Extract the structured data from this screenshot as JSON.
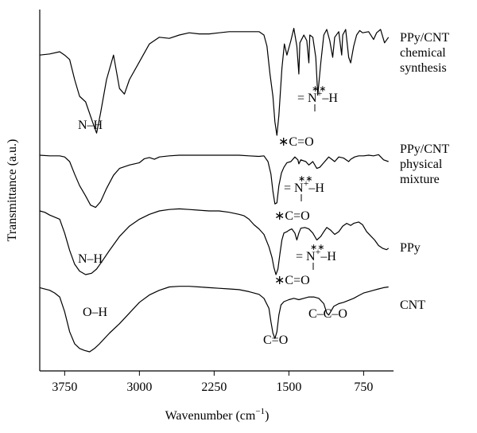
{
  "chart_data": {
    "type": "line",
    "xlabel": "Wavenumber (cm",
    "xlabel_exp": "−1",
    "xlabel_close": ")",
    "ylabel": "Transmittance (a.u.)",
    "xlim": [
      4000,
      450
    ],
    "x_reversed": true,
    "x_ticks": [
      3750,
      3000,
      2250,
      1500,
      750
    ],
    "x_tick_labels": [
      "3750",
      "3000",
      "2250",
      "1500",
      "750"
    ],
    "grid": false,
    "offset_stacked": true,
    "series": [
      {
        "name_lines": [
          "PPy/CNT",
          "chemical",
          "synthesis"
        ],
        "points": [
          [
            4000,
            0.72
          ],
          [
            3900,
            0.73
          ],
          [
            3800,
            0.75
          ],
          [
            3750,
            0.72
          ],
          [
            3700,
            0.68
          ],
          [
            3650,
            0.5
          ],
          [
            3600,
            0.35
          ],
          [
            3540,
            0.3
          ],
          [
            3470,
            0.12
          ],
          [
            3430,
            0.02
          ],
          [
            3390,
            0.2
          ],
          [
            3330,
            0.5
          ],
          [
            3260,
            0.72
          ],
          [
            3200,
            0.42
          ],
          [
            3150,
            0.37
          ],
          [
            3100,
            0.5
          ],
          [
            3000,
            0.66
          ],
          [
            2900,
            0.82
          ],
          [
            2800,
            0.88
          ],
          [
            2700,
            0.87
          ],
          [
            2600,
            0.9
          ],
          [
            2500,
            0.92
          ],
          [
            2400,
            0.91
          ],
          [
            2300,
            0.91
          ],
          [
            2200,
            0.92
          ],
          [
            2100,
            0.93
          ],
          [
            2000,
            0.93
          ],
          [
            1900,
            0.93
          ],
          [
            1800,
            0.93
          ],
          [
            1750,
            0.9
          ],
          [
            1720,
            0.8
          ],
          [
            1690,
            0.55
          ],
          [
            1660,
            0.35
          ],
          [
            1640,
            0.12
          ],
          [
            1620,
            0.0
          ],
          [
            1600,
            0.18
          ],
          [
            1570,
            0.6
          ],
          [
            1545,
            0.82
          ],
          [
            1520,
            0.72
          ],
          [
            1480,
            0.85
          ],
          [
            1450,
            0.96
          ],
          [
            1420,
            0.8
          ],
          [
            1400,
            0.55
          ],
          [
            1390,
            0.83
          ],
          [
            1350,
            0.9
          ],
          [
            1320,
            0.85
          ],
          [
            1300,
            0.65
          ],
          [
            1290,
            0.9
          ],
          [
            1260,
            0.88
          ],
          [
            1230,
            0.7
          ],
          [
            1210,
            0.36
          ],
          [
            1180,
            0.65
          ],
          [
            1150,
            0.9
          ],
          [
            1120,
            0.95
          ],
          [
            1090,
            0.85
          ],
          [
            1060,
            0.7
          ],
          [
            1040,
            0.88
          ],
          [
            1000,
            0.93
          ],
          [
            970,
            0.72
          ],
          [
            960,
            0.9
          ],
          [
            930,
            0.95
          ],
          [
            900,
            0.7
          ],
          [
            880,
            0.65
          ],
          [
            850,
            0.8
          ],
          [
            820,
            0.9
          ],
          [
            790,
            0.94
          ],
          [
            760,
            0.92
          ],
          [
            700,
            0.93
          ],
          [
            650,
            0.86
          ],
          [
            620,
            0.92
          ],
          [
            580,
            0.95
          ],
          [
            540,
            0.83
          ],
          [
            500,
            0.88
          ]
        ]
      },
      {
        "name_lines": [
          "PPy/CNT",
          "physical",
          "mixture"
        ],
        "points": [
          [
            4000,
            0.93
          ],
          [
            3900,
            0.92
          ],
          [
            3800,
            0.92
          ],
          [
            3750,
            0.9
          ],
          [
            3700,
            0.82
          ],
          [
            3650,
            0.6
          ],
          [
            3600,
            0.4
          ],
          [
            3540,
            0.22
          ],
          [
            3490,
            0.06
          ],
          [
            3440,
            0.02
          ],
          [
            3390,
            0.12
          ],
          [
            3330,
            0.35
          ],
          [
            3260,
            0.58
          ],
          [
            3200,
            0.7
          ],
          [
            3100,
            0.76
          ],
          [
            3000,
            0.8
          ],
          [
            2950,
            0.87
          ],
          [
            2900,
            0.89
          ],
          [
            2850,
            0.86
          ],
          [
            2800,
            0.9
          ],
          [
            2700,
            0.92
          ],
          [
            2600,
            0.93
          ],
          [
            2400,
            0.93
          ],
          [
            2200,
            0.93
          ],
          [
            2000,
            0.93
          ],
          [
            1900,
            0.92
          ],
          [
            1800,
            0.91
          ],
          [
            1750,
            0.92
          ],
          [
            1710,
            0.82
          ],
          [
            1680,
            0.6
          ],
          [
            1660,
            0.3
          ],
          [
            1640,
            0.08
          ],
          [
            1620,
            0.1
          ],
          [
            1600,
            0.4
          ],
          [
            1575,
            0.62
          ],
          [
            1550,
            0.72
          ],
          [
            1520,
            0.8
          ],
          [
            1480,
            0.82
          ],
          [
            1440,
            0.9
          ],
          [
            1410,
            0.85
          ],
          [
            1400,
            0.78
          ],
          [
            1380,
            0.85
          ],
          [
            1330,
            0.82
          ],
          [
            1300,
            0.76
          ],
          [
            1260,
            0.82
          ],
          [
            1220,
            0.7
          ],
          [
            1190,
            0.72
          ],
          [
            1150,
            0.8
          ],
          [
            1100,
            0.9
          ],
          [
            1070,
            0.86
          ],
          [
            1040,
            0.82
          ],
          [
            1000,
            0.9
          ],
          [
            950,
            0.88
          ],
          [
            900,
            0.82
          ],
          [
            880,
            0.86
          ],
          [
            840,
            0.9
          ],
          [
            800,
            0.92
          ],
          [
            750,
            0.92
          ],
          [
            700,
            0.93
          ],
          [
            650,
            0.92
          ],
          [
            600,
            0.94
          ],
          [
            550,
            0.85
          ],
          [
            500,
            0.82
          ]
        ]
      },
      {
        "name_lines": [
          "PPy"
        ],
        "points": [
          [
            4000,
            0.92
          ],
          [
            3950,
            0.9
          ],
          [
            3900,
            0.86
          ],
          [
            3800,
            0.8
          ],
          [
            3750,
            0.6
          ],
          [
            3700,
            0.35
          ],
          [
            3650,
            0.15
          ],
          [
            3600,
            0.05
          ],
          [
            3540,
            0.0
          ],
          [
            3480,
            0.02
          ],
          [
            3430,
            0.08
          ],
          [
            3380,
            0.18
          ],
          [
            3300,
            0.35
          ],
          [
            3200,
            0.55
          ],
          [
            3100,
            0.7
          ],
          [
            3000,
            0.8
          ],
          [
            2900,
            0.87
          ],
          [
            2800,
            0.92
          ],
          [
            2700,
            0.94
          ],
          [
            2600,
            0.95
          ],
          [
            2500,
            0.94
          ],
          [
            2400,
            0.93
          ],
          [
            2300,
            0.92
          ],
          [
            2200,
            0.92
          ],
          [
            2100,
            0.9
          ],
          [
            2000,
            0.87
          ],
          [
            1950,
            0.85
          ],
          [
            1900,
            0.8
          ],
          [
            1850,
            0.72
          ],
          [
            1800,
            0.66
          ],
          [
            1750,
            0.58
          ],
          [
            1700,
            0.4
          ],
          [
            1670,
            0.25
          ],
          [
            1650,
            0.1
          ],
          [
            1630,
            0.0
          ],
          [
            1610,
            0.08
          ],
          [
            1590,
            0.3
          ],
          [
            1570,
            0.5
          ],
          [
            1550,
            0.6
          ],
          [
            1520,
            0.62
          ],
          [
            1500,
            0.64
          ],
          [
            1470,
            0.66
          ],
          [
            1440,
            0.6
          ],
          [
            1420,
            0.5
          ],
          [
            1400,
            0.6
          ],
          [
            1380,
            0.67
          ],
          [
            1340,
            0.68
          ],
          [
            1300,
            0.66
          ],
          [
            1260,
            0.6
          ],
          [
            1220,
            0.5
          ],
          [
            1180,
            0.55
          ],
          [
            1150,
            0.62
          ],
          [
            1120,
            0.68
          ],
          [
            1080,
            0.64
          ],
          [
            1040,
            0.58
          ],
          [
            1000,
            0.62
          ],
          [
            960,
            0.7
          ],
          [
            920,
            0.74
          ],
          [
            880,
            0.71
          ],
          [
            850,
            0.74
          ],
          [
            800,
            0.76
          ],
          [
            760,
            0.72
          ],
          [
            720,
            0.62
          ],
          [
            680,
            0.56
          ],
          [
            640,
            0.5
          ],
          [
            600,
            0.42
          ],
          [
            560,
            0.38
          ],
          [
            520,
            0.36
          ],
          [
            500,
            0.38
          ]
        ]
      },
      {
        "name_lines": [
          "CNT"
        ],
        "points": [
          [
            4000,
            0.96
          ],
          [
            3900,
            0.92
          ],
          [
            3850,
            0.88
          ],
          [
            3800,
            0.82
          ],
          [
            3750,
            0.6
          ],
          [
            3700,
            0.3
          ],
          [
            3650,
            0.12
          ],
          [
            3600,
            0.05
          ],
          [
            3550,
            0.02
          ],
          [
            3500,
            0.0
          ],
          [
            3450,
            0.05
          ],
          [
            3400,
            0.12
          ],
          [
            3300,
            0.28
          ],
          [
            3200,
            0.42
          ],
          [
            3100,
            0.58
          ],
          [
            3000,
            0.74
          ],
          [
            2900,
            0.85
          ],
          [
            2800,
            0.92
          ],
          [
            2700,
            0.97
          ],
          [
            2600,
            0.98
          ],
          [
            2500,
            0.98
          ],
          [
            2400,
            0.97
          ],
          [
            2300,
            0.96
          ],
          [
            2200,
            0.95
          ],
          [
            2100,
            0.94
          ],
          [
            2000,
            0.93
          ],
          [
            1900,
            0.9
          ],
          [
            1800,
            0.86
          ],
          [
            1750,
            0.8
          ],
          [
            1700,
            0.65
          ],
          [
            1680,
            0.45
          ],
          [
            1660,
            0.28
          ],
          [
            1640,
            0.2
          ],
          [
            1620,
            0.3
          ],
          [
            1600,
            0.55
          ],
          [
            1580,
            0.7
          ],
          [
            1550,
            0.75
          ],
          [
            1500,
            0.78
          ],
          [
            1450,
            0.8
          ],
          [
            1400,
            0.78
          ],
          [
            1350,
            0.8
          ],
          [
            1300,
            0.82
          ],
          [
            1250,
            0.82
          ],
          [
            1200,
            0.8
          ],
          [
            1150,
            0.72
          ],
          [
            1120,
            0.58
          ],
          [
            1100,
            0.55
          ],
          [
            1080,
            0.6
          ],
          [
            1050,
            0.68
          ],
          [
            1000,
            0.72
          ],
          [
            950,
            0.74
          ],
          [
            900,
            0.77
          ],
          [
            850,
            0.8
          ],
          [
            800,
            0.84
          ],
          [
            750,
            0.88
          ],
          [
            700,
            0.9
          ],
          [
            650,
            0.92
          ],
          [
            600,
            0.94
          ],
          [
            550,
            0.96
          ],
          [
            500,
            0.97
          ]
        ]
      }
    ],
    "annotations": [
      {
        "segments": [
          "N–H"
        ]
      },
      {
        "segments": [
          "∗C=O"
        ]
      },
      {
        "segments": [
          "= N",
          "+",
          "–H"
        ],
        "stars": "∗∗"
      },
      {
        "segments": [
          "N–H"
        ]
      },
      {
        "segments": [
          "∗C=O"
        ]
      },
      {
        "segments": [
          "= N",
          "+",
          "–H"
        ],
        "stars": "∗∗"
      },
      {
        "segments": [
          "∗C=O"
        ]
      },
      {
        "segments": [
          "= N",
          "+",
          "–H"
        ],
        "stars": "∗∗"
      },
      {
        "segments": [
          "O–H"
        ]
      },
      {
        "segments": [
          "C=O"
        ]
      },
      {
        "segments": [
          "C–C–O"
        ]
      }
    ]
  }
}
